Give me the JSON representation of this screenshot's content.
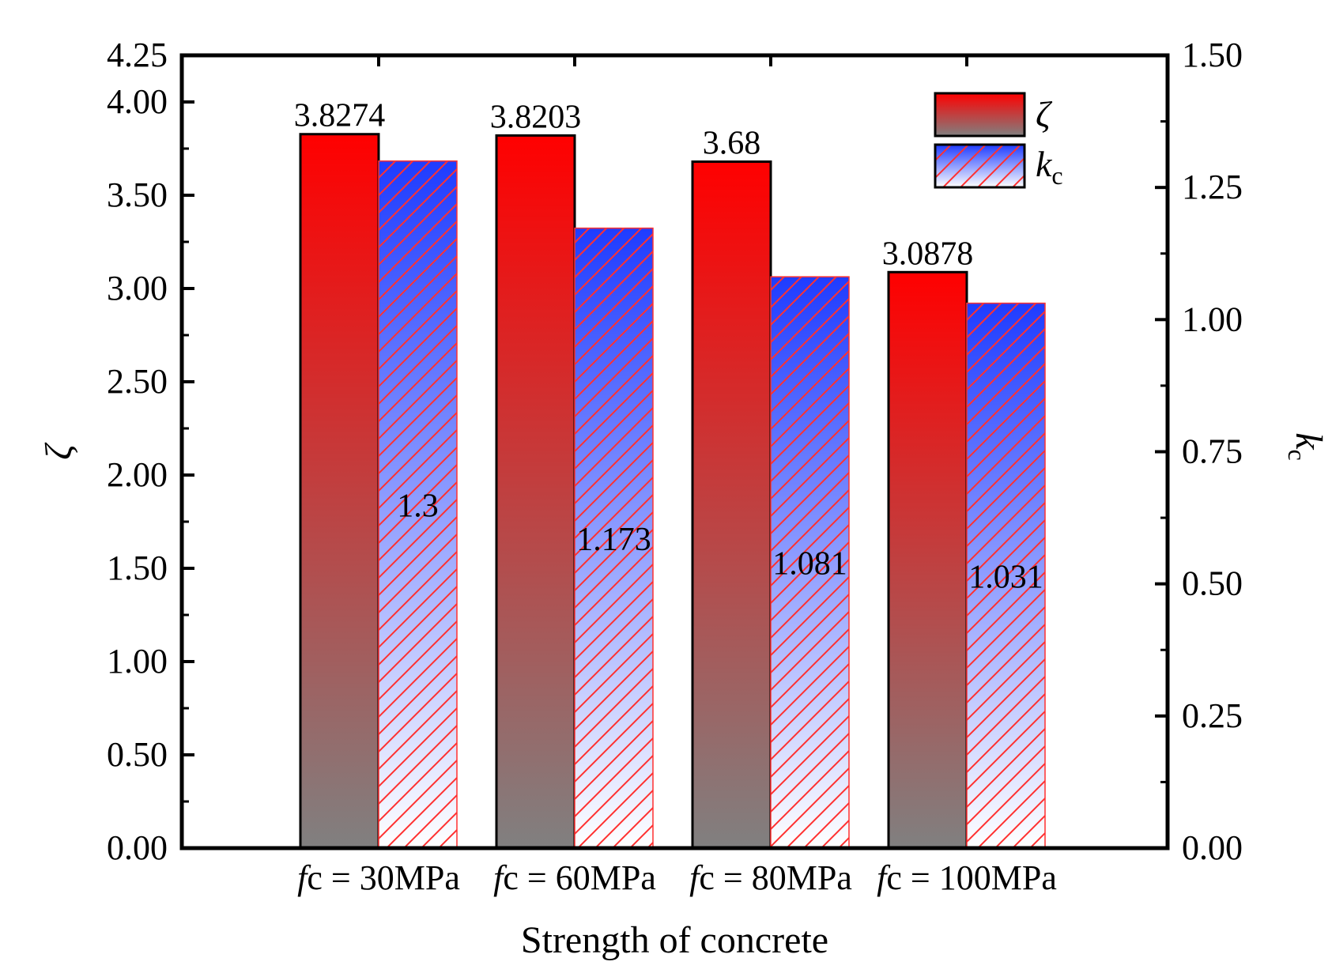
{
  "chart_data": {
    "type": "bar",
    "title": "",
    "xlabel": "Strength of concrete",
    "categories": [
      {
        "prefix": "f",
        "suffix": "c = 30MPa"
      },
      {
        "prefix": "f",
        "suffix": "c = 60MPa"
      },
      {
        "prefix": "f",
        "suffix": "c = 80MPa"
      },
      {
        "prefix": "f",
        "suffix": "c = 100MPa"
      }
    ],
    "left_axis": {
      "label": "ζ",
      "ylim": [
        0,
        4.25
      ],
      "ticks": [
        0,
        0.5,
        1.0,
        1.5,
        2.0,
        2.5,
        3.0,
        3.5,
        4.0,
        4.25
      ],
      "tick_labels": [
        "0.00",
        "0.50",
        "1.00",
        "1.50",
        "2.00",
        "2.50",
        "3.00",
        "3.50",
        "4.00",
        "4.25"
      ]
    },
    "right_axis": {
      "label_main": "k",
      "label_sub": "c",
      "ylim": [
        0,
        1.5
      ],
      "ticks": [
        0,
        0.25,
        0.5,
        0.75,
        1.0,
        1.25,
        1.5
      ],
      "tick_labels": [
        "0.00",
        "0.25",
        "0.50",
        "0.75",
        "1.00",
        "1.25",
        "1.50"
      ]
    },
    "series": [
      {
        "name": "ζ",
        "axis": "left",
        "values": [
          3.8274,
          3.8203,
          3.68,
          3.0878
        ],
        "labels": [
          "3.8274",
          "3.8203",
          "3.68",
          "3.0878"
        ],
        "color_top": "#ff0000",
        "color_bottom": "#808080"
      },
      {
        "name_main": "k",
        "name_sub": "c",
        "axis": "right",
        "values": [
          1.3,
          1.173,
          1.081,
          1.031
        ],
        "labels": [
          "1.3",
          "1.173",
          "1.081",
          "1.031"
        ],
        "color_top": "#1f3cff",
        "color_bottom": "#ffffff",
        "hatch_color": "#ff3030"
      }
    ],
    "legend_position": "top-right",
    "grid": false
  }
}
